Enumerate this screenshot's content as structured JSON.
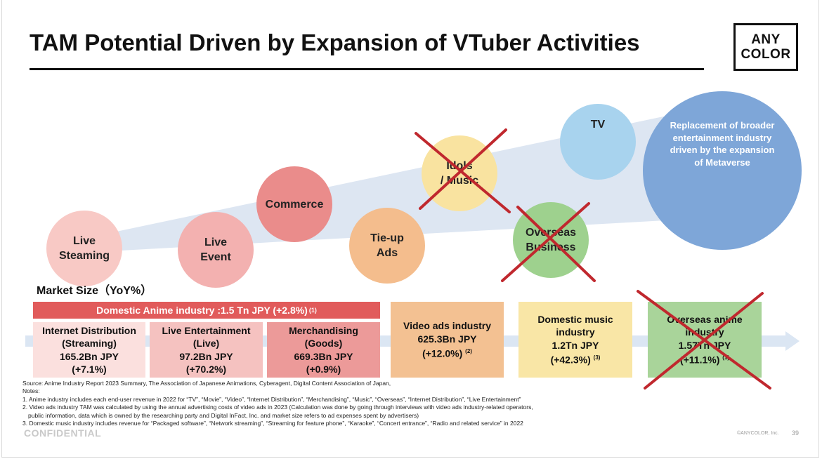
{
  "title": "TAM Potential Driven by Expansion of VTuber Activities",
  "logo": {
    "line1": "ANY",
    "line2": "COLOR"
  },
  "circles": [
    {
      "label": "Live\nSteaming",
      "color": "#f8c9c5",
      "crossed": false
    },
    {
      "label": "Live\nEvent",
      "color": "#f3b1b0",
      "crossed": false
    },
    {
      "label": "Commerce",
      "color": "#ea8c8b",
      "crossed": false
    },
    {
      "label": "Tie-up\nAds",
      "color": "#f4bd8d",
      "crossed": false
    },
    {
      "label": "Idols\n/ Music",
      "color": "#f9e3a0",
      "crossed": true
    },
    {
      "label": "TV",
      "color": "#a8d3ee",
      "crossed": false
    },
    {
      "label": "Overseas\nBusiness",
      "color": "#9ed18e",
      "crossed": true
    },
    {
      "label": "Replacement of  broader\nentertainment industry\ndriven by the expansion\nof Metaverse",
      "color": "#7ea6d8",
      "crossed": false
    }
  ],
  "market_size_label": "Market Size（YoY%）",
  "anime_bar": {
    "text": "Domestic Anime industry :1.5 Tn JPY (+2.8%)",
    "note": "(1)"
  },
  "boxes": [
    {
      "name": "Internet Distribution\n(Streaming)",
      "value": "165.2Bn JPY",
      "yoy": "(+7.1%)",
      "note": "",
      "crossed": false
    },
    {
      "name": "Live Entertainment\n(Live)",
      "value": "97.2Bn JPY",
      "yoy": "(+70.2%)",
      "note": "",
      "crossed": false
    },
    {
      "name": "Merchandising\n(Goods)",
      "value": "669.3Bn JPY",
      "yoy": "(+0.9%)",
      "note": "",
      "crossed": false
    },
    {
      "name": "Video ads industry",
      "value": "625.3Bn JPY",
      "yoy": "(+12.0%)",
      "note": "(2)",
      "crossed": false
    },
    {
      "name": "Domestic music\nindustry",
      "value": "1.2Tn JPY",
      "yoy": "(+42.3%)",
      "note": "(3)",
      "crossed": false
    },
    {
      "name": "Overseas anime\nindustry",
      "value": "1.57Tn JPY",
      "yoy": "(+11.1%)",
      "note": "(1)",
      "crossed": true
    }
  ],
  "source": {
    "line1": "Source: Anime Industry Report 2023 Summary, The Association of Japanese Animations, Cyberagent, Digital Content Association of Japan,",
    "line2": "Notes:",
    "line3": "1. Anime industry includes each end-user revenue in 2022 for “TV”, “Movie”, “Video”, “Internet Distribution”, “Merchandising”, “Music”, “Overseas”, “Internet Distribution”, “Live Entertainment”",
    "line4": "2. Video ads industry TAM was calculated by using the annual advertising costs of video ads in 2023 (Calculation was done by going through interviews with video ads industry-related operators,",
    "line5": "    public information, data which is owned by the researching party and Digital InFact, Inc. and market size refers to ad expenses spent by advertisers)",
    "line6": "3. Domestic music industry includes revenue for “Packaged software”, “Network streaming”, “Streaming for feature phone”, “Karaoke”, “Concert entrance”, “Radio and related service” in 2022"
  },
  "footer": {
    "confidential": "CONFIDENTIAL",
    "copyright": "©ANYCOLOR, Inc.",
    "page": "39"
  },
  "colors": {
    "cross": "#c0282e",
    "arrow": "#dbe6f3",
    "wedge": "#dde6f2",
    "anime_bar": "#e15b5b"
  }
}
